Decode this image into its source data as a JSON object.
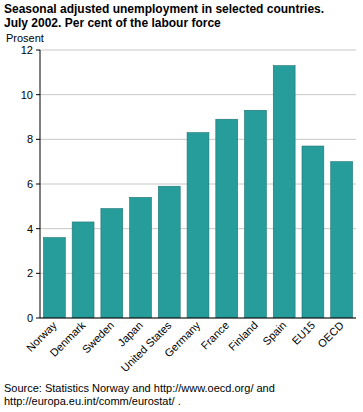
{
  "chart_data": {
    "type": "bar",
    "title": "Seasonal adjusted unemployment in selected countries. July 2002. Per cent of the labour force",
    "y_label": "Prosent",
    "source": "Source: Statistics Norway and http://www.oecd.org/ and http://europa.eu.int/comm/eurostat/ .",
    "categories": [
      "Norway",
      "Denmark",
      "Sweden",
      "Japan",
      "United States",
      "Germany",
      "France",
      "Finland",
      "Spain",
      "EU15",
      "OECD"
    ],
    "values": [
      3.6,
      4.3,
      4.9,
      5.4,
      5.9,
      8.3,
      8.9,
      9.3,
      11.3,
      7.7,
      7.0
    ],
    "color": "#279d9b",
    "ylim": [
      0,
      12
    ],
    "yticks": [
      0,
      2,
      4,
      6,
      8,
      10,
      12
    ],
    "grid": true
  }
}
